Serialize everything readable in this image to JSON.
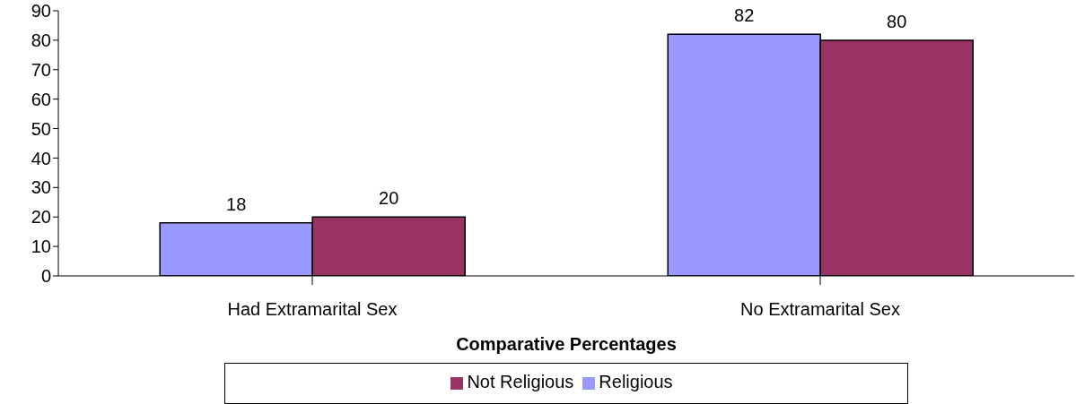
{
  "chart_data": {
    "type": "bar",
    "xlabel": "Comparative Percentages",
    "categories": [
      "Had Extramarital Sex",
      "No Extramarital Sex"
    ],
    "series": [
      {
        "name": "Religious",
        "color": "#9999ff",
        "values": [
          18,
          82
        ]
      },
      {
        "name": "Not Religious",
        "color": "#993366",
        "values": [
          20,
          80
        ]
      }
    ],
    "ylim": [
      0,
      90
    ],
    "yticks": [
      0,
      10,
      20,
      30,
      40,
      50,
      60,
      70,
      80,
      90
    ],
    "grid": false,
    "legend": "bottom",
    "data_labels": true
  }
}
